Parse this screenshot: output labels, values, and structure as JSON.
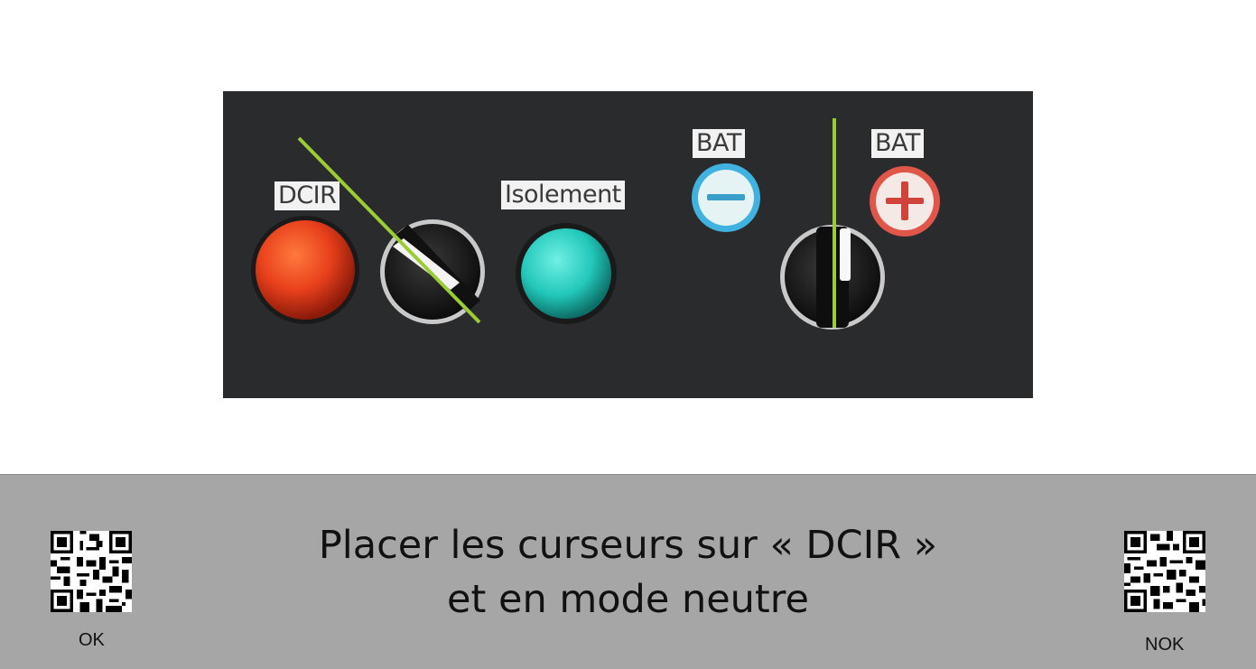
{
  "panel": {
    "labels": {
      "dcir": "DCIR",
      "isolement": "Isolement",
      "bat_minus": "BAT",
      "bat_plus": "BAT"
    },
    "colors": {
      "panel_bg": "#2a2b2d",
      "dcir_light": "#e8401c",
      "isolement_light": "#2fd4c6",
      "indicator_line": "#9acd32"
    }
  },
  "instruction": {
    "line1": "Placer les curseurs sur « DCIR »",
    "line2": "et en mode neutre"
  },
  "qr_ok": {
    "caption": "OK",
    "icon": "qr-code-icon"
  },
  "qr_nok": {
    "caption": "NOK",
    "icon": "qr-code-icon"
  }
}
